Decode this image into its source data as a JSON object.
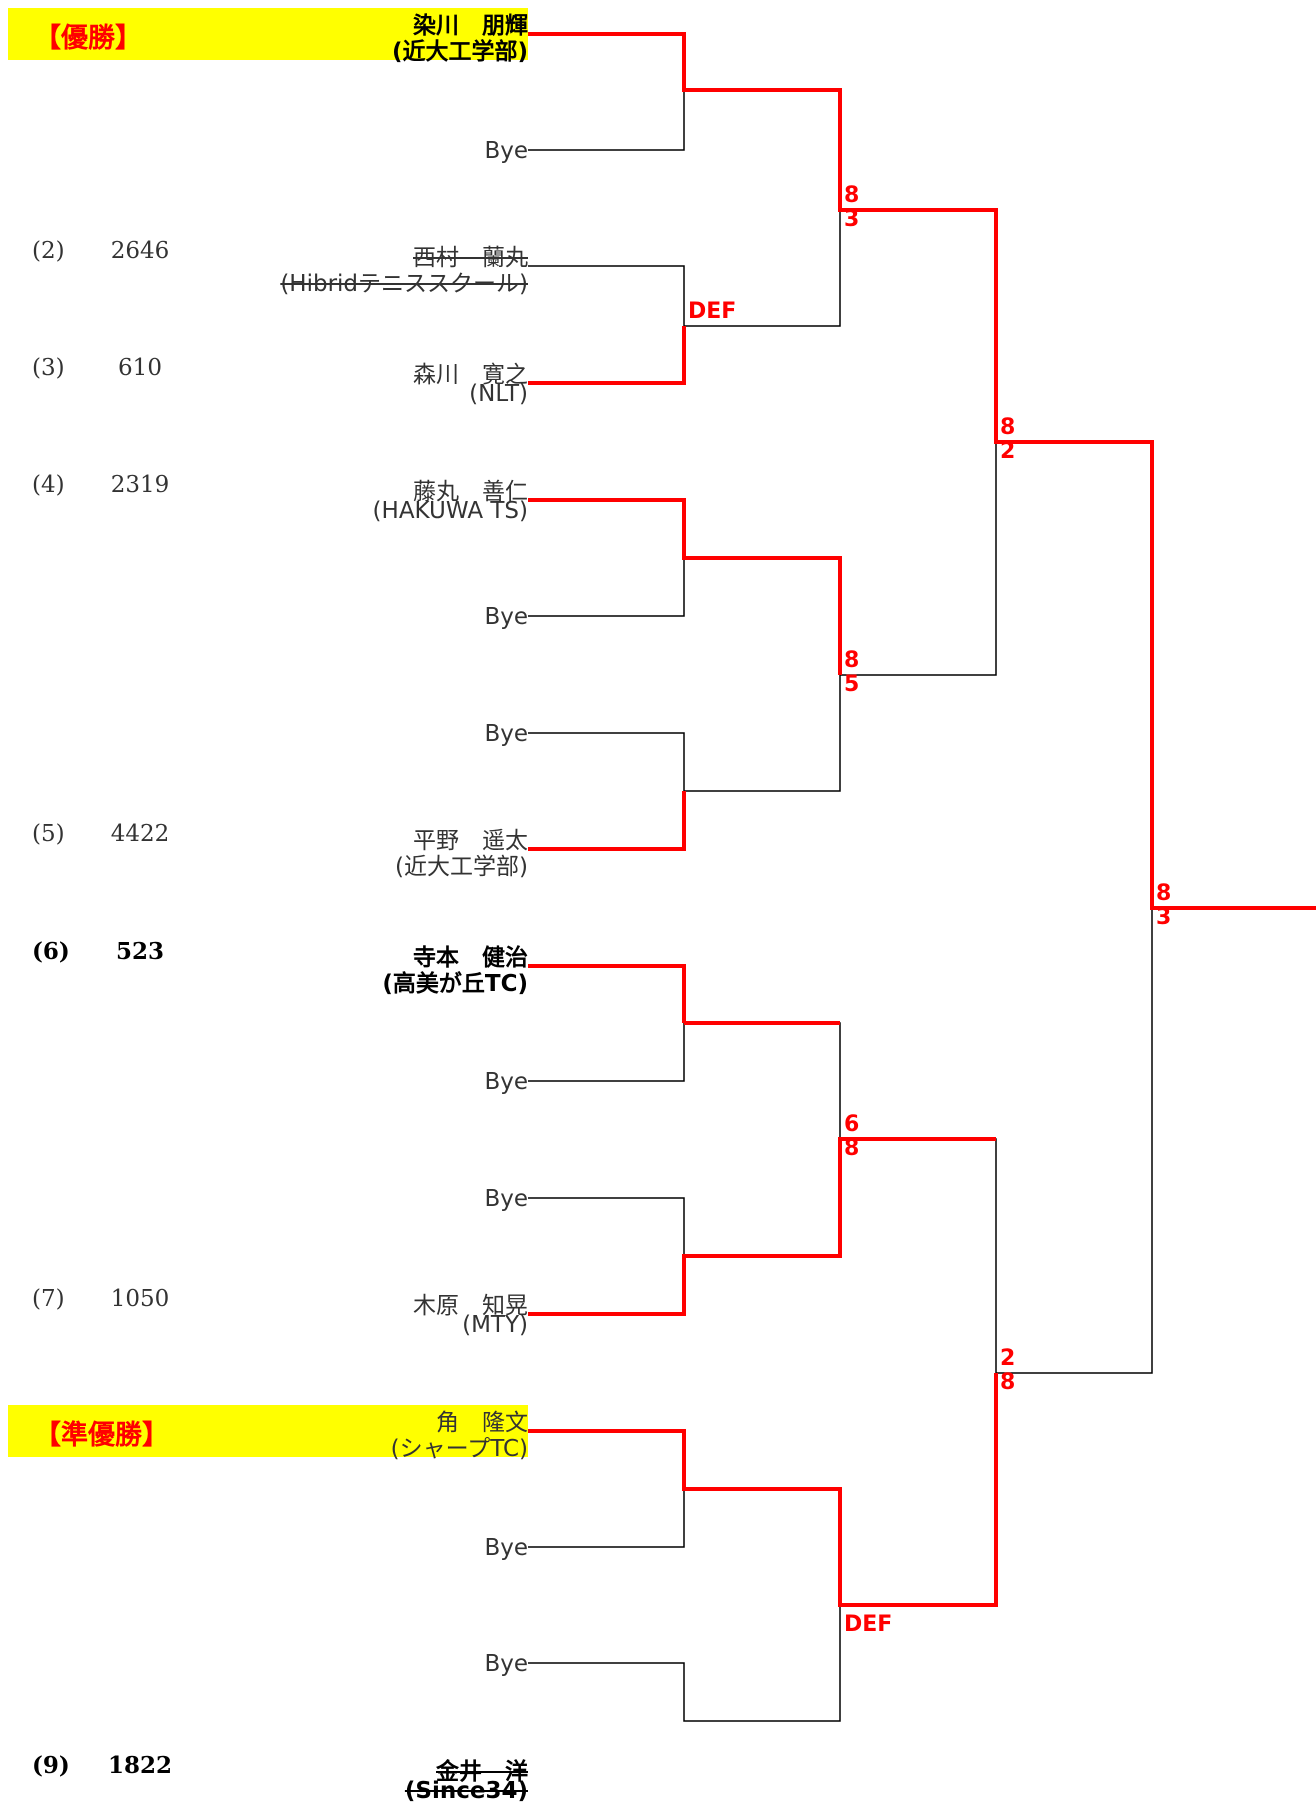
{
  "awards": {
    "champion_label": "【優勝】",
    "runner_up_label": "【準優勝】"
  },
  "entries": [
    {
      "seed": "",
      "rank": "",
      "name": "染川　朋輝",
      "club": "(近大工学部)"
    },
    {
      "bye": "Bye"
    },
    {
      "seed": "(2)",
      "rank": "2646",
      "name": "西村　蘭丸",
      "club": "(Hibridテニススクール)"
    },
    {
      "seed": "(3)",
      "rank": "610",
      "name": "森川　寛之",
      "club": "(NLT)"
    },
    {
      "seed": "(4)",
      "rank": "2319",
      "name": "藤丸　善仁",
      "club": "(HAKUWA TS)"
    },
    {
      "bye": "Bye"
    },
    {
      "bye": "Bye"
    },
    {
      "seed": "(5)",
      "rank": "4422",
      "name": "平野　遥太",
      "club": "(近大工学部)"
    },
    {
      "seed": "(6)",
      "rank": "523",
      "name": "寺本　健治",
      "club": "(高美が丘TC)"
    },
    {
      "bye": "Bye"
    },
    {
      "bye": "Bye"
    },
    {
      "seed": "(7)",
      "rank": "1050",
      "name": "木原　知晃",
      "club": "(MTY)"
    },
    {
      "seed": "",
      "rank": "",
      "name": "角　隆文",
      "club": "(シャープTC)"
    },
    {
      "bye": "Bye"
    },
    {
      "bye": "Bye"
    },
    {
      "seed": "(9)",
      "rank": "1822",
      "name": "金井　洋",
      "club": "(Since34)"
    }
  ],
  "scores": {
    "r2_match_1": [
      "8",
      "3"
    ],
    "r2_match_2_def": "DEF",
    "r3_match_1": [
      "8",
      "2"
    ],
    "r2_match_3": [
      "8",
      "5"
    ],
    "final": [
      "8",
      "3"
    ],
    "r2_match_5": [
      "6",
      "8"
    ],
    "r3_match_2": [
      "2",
      "8"
    ],
    "r2_match_7_def": "DEF"
  },
  "colors": {
    "winner_line": "#ff0000",
    "bracket_line": "#000000",
    "award_highlight": "#ffff00"
  }
}
